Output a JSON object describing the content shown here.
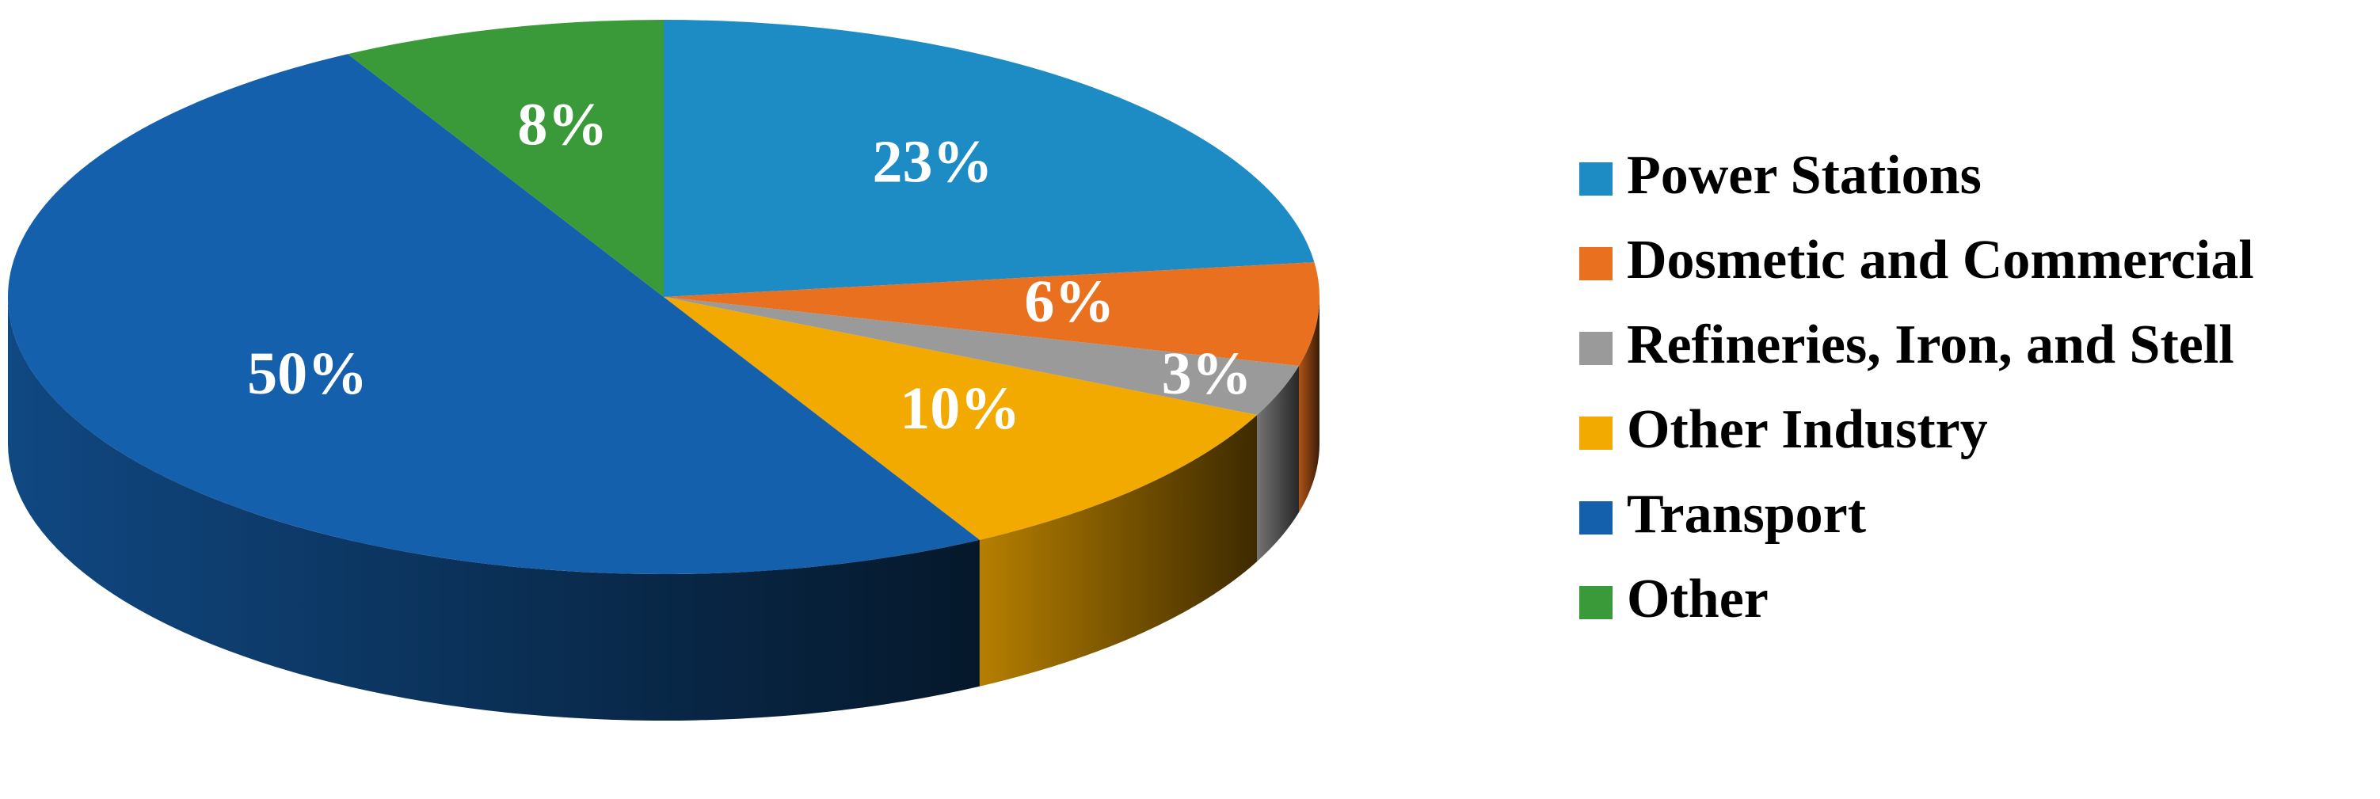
{
  "chart_data": {
    "type": "pie",
    "categories": [
      "Power Stations",
      "Dosmetic and Commercial",
      "Refineries, Iron, and Stell",
      "Other Industry",
      "Transport",
      "Other"
    ],
    "values": [
      23,
      6,
      3,
      10,
      50,
      8
    ],
    "value_labels": [
      "23%",
      "6%",
      "3%",
      "10%",
      "50%",
      "8%"
    ],
    "colors": [
      "#1d8cc4",
      "#e9701f",
      "#9a9a9a",
      "#f2a900",
      "#1560ad",
      "#3a9a3a"
    ],
    "legend": "right"
  }
}
